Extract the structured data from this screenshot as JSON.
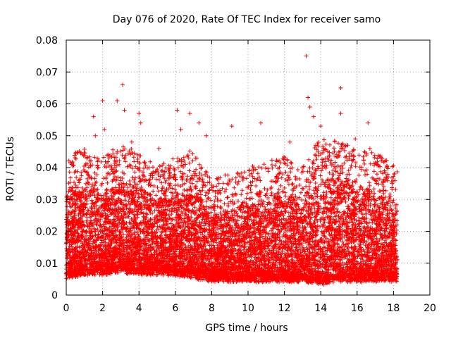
{
  "chart_data": {
    "type": "scatter",
    "title": "Day 076 of 2020, Rate Of TEC Index for receiver samo",
    "xlabel": "GPS time / hours",
    "ylabel": "ROTI / TECUs",
    "xlim": [
      0,
      20
    ],
    "ylim": [
      0,
      0.08
    ],
    "x_ticks": [
      "0",
      "2",
      "4",
      "6",
      "8",
      "10",
      "12",
      "14",
      "16",
      "18",
      "20"
    ],
    "y_ticks": [
      "0",
      "0.01",
      "0.02",
      "0.03",
      "0.04",
      "0.05",
      "0.06",
      "0.07",
      "0.08"
    ],
    "grid": true,
    "marker": "+",
    "series": [
      {
        "color": "#ff0000",
        "x_range": [
          0,
          18.2
        ],
        "note_values": "dense cloud of ROTI samples; outliers listed below",
        "peak_points": [
          {
            "x": 0.3,
            "y": 0.041
          },
          {
            "x": 1.5,
            "y": 0.056
          },
          {
            "x": 1.6,
            "y": 0.05
          },
          {
            "x": 2.0,
            "y": 0.061
          },
          {
            "x": 2.1,
            "y": 0.052
          },
          {
            "x": 2.8,
            "y": 0.061
          },
          {
            "x": 3.1,
            "y": 0.066
          },
          {
            "x": 3.2,
            "y": 0.058
          },
          {
            "x": 3.6,
            "y": 0.048
          },
          {
            "x": 4.0,
            "y": 0.057
          },
          {
            "x": 4.1,
            "y": 0.054
          },
          {
            "x": 5.1,
            "y": 0.046
          },
          {
            "x": 6.1,
            "y": 0.058
          },
          {
            "x": 6.3,
            "y": 0.052
          },
          {
            "x": 6.8,
            "y": 0.057
          },
          {
            "x": 7.3,
            "y": 0.054
          },
          {
            "x": 7.7,
            "y": 0.05
          },
          {
            "x": 9.1,
            "y": 0.053
          },
          {
            "x": 10.7,
            "y": 0.054
          },
          {
            "x": 12.3,
            "y": 0.048
          },
          {
            "x": 13.2,
            "y": 0.075
          },
          {
            "x": 13.3,
            "y": 0.062
          },
          {
            "x": 13.4,
            "y": 0.059
          },
          {
            "x": 13.6,
            "y": 0.056
          },
          {
            "x": 14.0,
            "y": 0.053
          },
          {
            "x": 15.1,
            "y": 0.065
          },
          {
            "x": 15.1,
            "y": 0.057
          },
          {
            "x": 15.9,
            "y": 0.049
          },
          {
            "x": 16.6,
            "y": 0.054
          },
          {
            "x": 16.7,
            "y": 0.046
          },
          {
            "x": 17.5,
            "y": 0.039
          }
        ],
        "baseline_envelope": [
          {
            "x": 0,
            "low": 0.006,
            "high": 0.032
          },
          {
            "x": 1,
            "low": 0.007,
            "high": 0.034
          },
          {
            "x": 2,
            "low": 0.007,
            "high": 0.032
          },
          {
            "x": 3,
            "low": 0.008,
            "high": 0.035
          },
          {
            "x": 4,
            "low": 0.007,
            "high": 0.033
          },
          {
            "x": 5,
            "low": 0.007,
            "high": 0.03
          },
          {
            "x": 6,
            "low": 0.007,
            "high": 0.031
          },
          {
            "x": 7,
            "low": 0.006,
            "high": 0.034
          },
          {
            "x": 8,
            "low": 0.005,
            "high": 0.025
          },
          {
            "x": 9,
            "low": 0.005,
            "high": 0.026
          },
          {
            "x": 10,
            "low": 0.005,
            "high": 0.028
          },
          {
            "x": 11,
            "low": 0.005,
            "high": 0.03
          },
          {
            "x": 12,
            "low": 0.005,
            "high": 0.032
          },
          {
            "x": 13,
            "low": 0.005,
            "high": 0.028
          },
          {
            "x": 14,
            "low": 0.004,
            "high": 0.038
          },
          {
            "x": 15,
            "low": 0.005,
            "high": 0.036
          },
          {
            "x": 16,
            "low": 0.005,
            "high": 0.034
          },
          {
            "x": 17,
            "low": 0.005,
            "high": 0.033
          },
          {
            "x": 18.2,
            "low": 0.005,
            "high": 0.028
          }
        ]
      }
    ]
  }
}
